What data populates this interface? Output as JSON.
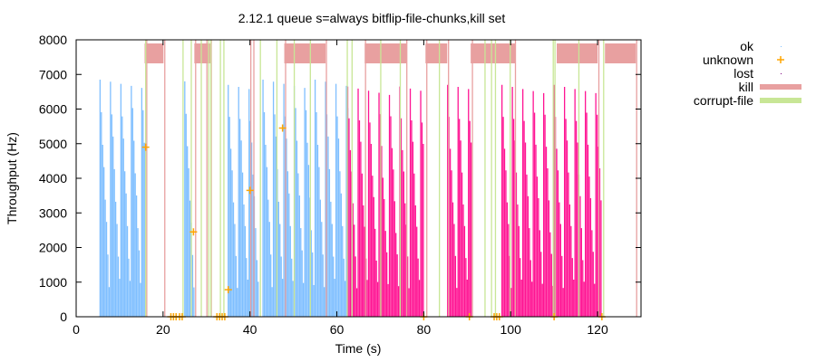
{
  "chart_data": {
    "type": "bar",
    "title": "2.12.1 queue s=always bitflip-file-chunks,kill set",
    "xlabel": "Time (s)",
    "ylabel": "Throughput (Hz)",
    "xlim": [
      0,
      130
    ],
    "ylim": [
      0,
      8000
    ],
    "xticks": [
      0,
      20,
      40,
      60,
      80,
      100,
      120
    ],
    "yticks": [
      0,
      1000,
      2000,
      3000,
      4000,
      5000,
      6000,
      7000,
      8000
    ],
    "grid": false,
    "legend_placement": "outside-right",
    "colors": {
      "ok": "#7fbfff",
      "ok_alt": "#ff1493",
      "unknown": "#ffa500",
      "lost": "#800080",
      "kill": "#e8a0a0",
      "corrupt": "#c8e696"
    },
    "legend": [
      {
        "label": "ok",
        "key": "ok"
      },
      {
        "label": "unknown",
        "key": "unknown"
      },
      {
        "label": "lost",
        "key": "lost"
      },
      {
        "label": "kill",
        "key": "kill"
      },
      {
        "label": "corrupt-file",
        "key": "corrupt"
      }
    ],
    "ok_segments": [
      {
        "start": 5.5,
        "end": 15.8,
        "peak": 6850,
        "color": "ok"
      },
      {
        "start": 25,
        "end": 27.3,
        "peak": 6800,
        "color": "ok"
      },
      {
        "start": 35,
        "end": 42,
        "peak": 6700,
        "color": "ok"
      },
      {
        "start": 43,
        "end": 62.5,
        "peak": 6850,
        "color": "ok"
      },
      {
        "start": 62.5,
        "end": 80,
        "peak": 6650,
        "color": "ok_alt"
      },
      {
        "start": 85.5,
        "end": 91,
        "peak": 6700,
        "color": "ok_alt"
      },
      {
        "start": 98,
        "end": 121,
        "peak": 6700,
        "color": "ok_alt"
      }
    ],
    "unknown_points": [
      [
        16,
        4900
      ],
      [
        21.8,
        0
      ],
      [
        22.4,
        0
      ],
      [
        23,
        0
      ],
      [
        23.8,
        0
      ],
      [
        24.4,
        0
      ],
      [
        27,
        2450
      ],
      [
        32.4,
        0
      ],
      [
        33,
        0
      ],
      [
        33.6,
        0
      ],
      [
        34.2,
        0
      ],
      [
        35,
        780
      ],
      [
        40,
        3650
      ],
      [
        47.5,
        5450
      ],
      [
        80,
        0
      ],
      [
        90.5,
        0
      ],
      [
        96.2,
        0
      ],
      [
        96.8,
        0
      ],
      [
        97.4,
        0
      ],
      [
        110,
        0
      ],
      [
        121,
        0
      ]
    ],
    "kill_intervals": [
      [
        15.75,
        20.1
      ],
      [
        27.2,
        31
      ],
      [
        47.9,
        57.4
      ],
      [
        66.4,
        76
      ],
      [
        80.4,
        85.4
      ],
      [
        90.8,
        101
      ],
      [
        110.6,
        120
      ],
      [
        121.7,
        128.8
      ]
    ],
    "kill_events": [
      16.25,
      20.4,
      27.5,
      30.1,
      31.1,
      40.2,
      40.9,
      48.2,
      57.6,
      66.6,
      76.1,
      80.7,
      85.7,
      91.2,
      101.1,
      120.3,
      129
    ],
    "corrupt_events": [
      16,
      24.6,
      26.5,
      28.8,
      30.5,
      31,
      33.2,
      34,
      42.4,
      46.2,
      50.2,
      53.9,
      62.4,
      63.5,
      70.1,
      74.6,
      83.6,
      94.1,
      95.6,
      96.5,
      99.9,
      109.8,
      110.2,
      115.7,
      121.4
    ]
  }
}
